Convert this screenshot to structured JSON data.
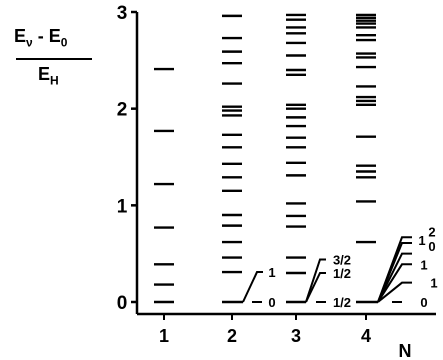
{
  "ylabel": {
    "numerator": "Eν - E0",
    "denominator": "EH"
  },
  "axes": {
    "xlabel": "N",
    "ylim": [
      0,
      3
    ],
    "y_ticks": [
      "0",
      "1",
      "2",
      "3"
    ],
    "x_ticks": [
      "1",
      "2",
      "3",
      "4"
    ]
  },
  "columns": [
    {
      "n": "1",
      "levels": [
        0.0,
        0.18,
        0.39,
        0.77,
        1.22,
        1.77,
        2.41
      ]
    },
    {
      "n": "2",
      "levels": [
        0.0,
        0.31,
        0.46,
        0.62,
        0.79,
        0.9,
        1.15,
        1.29,
        1.43,
        1.6,
        1.73,
        1.93,
        1.98,
        2.02,
        2.26,
        2.47,
        2.59,
        2.73,
        2.96
      ],
      "fan_labels": [
        "1",
        "0"
      ]
    },
    {
      "n": "3",
      "levels": [
        0.0,
        0.3,
        0.46,
        0.78,
        0.89,
        1.02,
        1.31,
        1.44,
        1.6,
        1.7,
        1.82,
        1.91,
        2.0,
        2.04,
        2.35,
        2.4,
        2.55,
        2.68,
        2.78,
        2.84,
        2.92,
        2.97
      ],
      "fan_labels": [
        "3/2",
        "1/2",
        "1/2"
      ]
    },
    {
      "n": "4",
      "levels": [
        0.0,
        0.62,
        1.04,
        1.29,
        1.35,
        1.41,
        1.71,
        2.04,
        2.08,
        2.12,
        2.23,
        2.43,
        2.53,
        2.57,
        2.71,
        2.76,
        2.84,
        2.88,
        2.91,
        2.94,
        2.97
      ],
      "fan_labels": [
        "2",
        "1",
        "0",
        "1",
        "1",
        "0"
      ]
    }
  ]
}
